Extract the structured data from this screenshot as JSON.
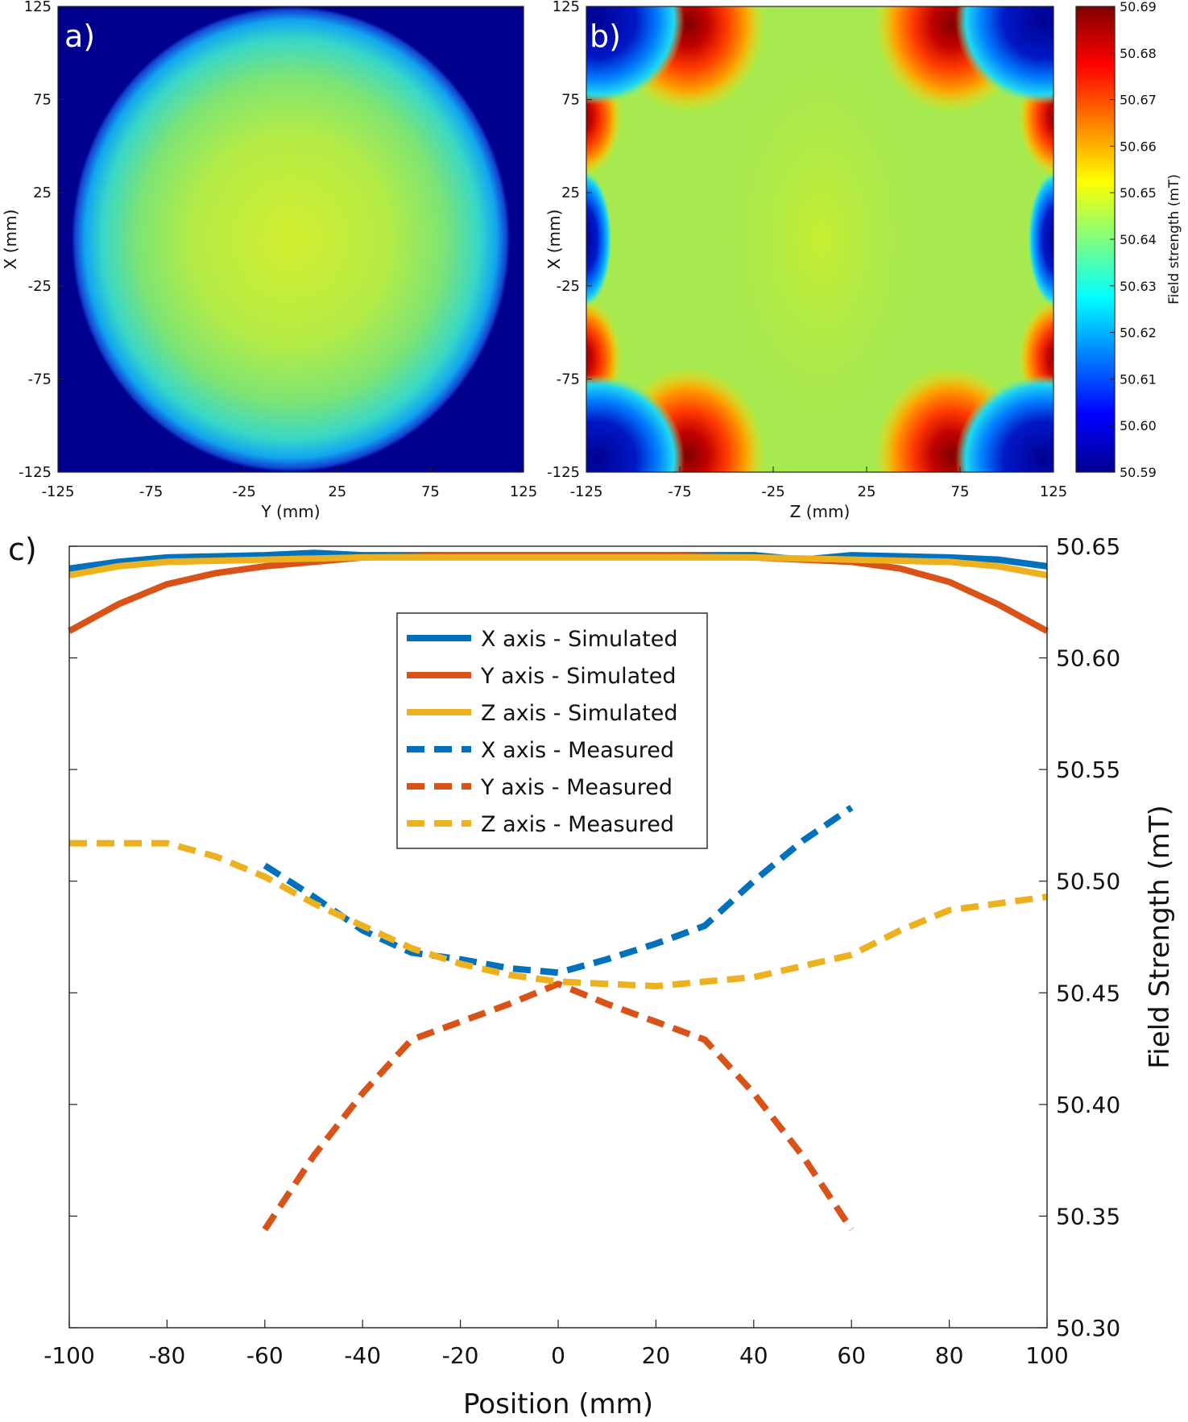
{
  "chart_data": [
    {
      "type": "heatmap",
      "panel_label": "a)",
      "xlabel": "Y (mm)",
      "ylabel": "X (mm)",
      "x_ticks": [
        "-125",
        "-75",
        "-25",
        "25",
        "75",
        "125"
      ],
      "y_ticks": [
        "125",
        "75",
        "25",
        "-25",
        "-75",
        "-125"
      ],
      "xlim": [
        -125,
        125
      ],
      "ylim": [
        -125,
        125
      ],
      "field_description_values": {
        "center": 50.647,
        "outside_ellipse": 50.59
      }
    },
    {
      "type": "heatmap",
      "panel_label": "b)",
      "xlabel": "Z (mm)",
      "ylabel": "X (mm)",
      "x_ticks": [
        "-125",
        "-75",
        "-25",
        "25",
        "75",
        "125"
      ],
      "y_ticks": [
        "125",
        "75",
        "25",
        "-25",
        "-75",
        "-125"
      ],
      "xlim": [
        -125,
        125
      ],
      "ylim": [
        -125,
        125
      ],
      "colorbar": {
        "label": "Field strength (mT)",
        "range": [
          50.59,
          50.69
        ],
        "ticks": [
          "50.69",
          "50.68",
          "50.67",
          "50.66",
          "50.65",
          "50.64",
          "50.63",
          "50.62",
          "50.61",
          "50.60",
          "50.59"
        ]
      }
    },
    {
      "type": "line",
      "panel_label": "c)",
      "xlabel": "Position (mm)",
      "ylabel": "Field Strength (mT)",
      "xlim": [
        -100,
        100
      ],
      "ylim": [
        50.3,
        50.65
      ],
      "x_ticks": [
        "-100",
        "-80",
        "-60",
        "-40",
        "-20",
        "0",
        "20",
        "40",
        "60",
        "80",
        "100"
      ],
      "y_ticks": [
        "50.65",
        "50.60",
        "50.55",
        "50.50",
        "50.45",
        "50.40",
        "50.35",
        "50.30"
      ],
      "series": [
        {
          "name": "X axis - Simulated",
          "color": "#0072BD",
          "dash": false,
          "x": [
            -100,
            -90,
            -80,
            -60,
            -50,
            -40,
            -20,
            0,
            20,
            40,
            50,
            60,
            80,
            90,
            100
          ],
          "y": [
            50.64,
            50.643,
            50.645,
            50.646,
            50.647,
            50.646,
            50.646,
            50.646,
            50.646,
            50.646,
            50.644,
            50.646,
            50.645,
            50.644,
            50.641
          ]
        },
        {
          "name": "Y axis - Simulated",
          "color": "#D95319",
          "dash": false,
          "x": [
            -100,
            -90,
            -80,
            -70,
            -60,
            -50,
            -40,
            -20,
            0,
            20,
            40,
            50,
            60,
            70,
            80,
            90,
            100
          ],
          "y": [
            50.612,
            50.624,
            50.633,
            50.638,
            50.641,
            50.643,
            50.645,
            50.646,
            50.646,
            50.646,
            50.645,
            50.644,
            50.643,
            50.64,
            50.634,
            50.624,
            50.612
          ]
        },
        {
          "name": "Z axis - Simulated",
          "color": "#EDB120",
          "dash": false,
          "x": [
            -100,
            -90,
            -80,
            -60,
            -40,
            -20,
            0,
            20,
            40,
            60,
            80,
            90,
            100
          ],
          "y": [
            50.637,
            50.641,
            50.643,
            50.644,
            50.645,
            50.645,
            50.645,
            50.645,
            50.645,
            50.644,
            50.643,
            50.641,
            50.637
          ]
        },
        {
          "name": "X axis - Measured",
          "color": "#0072BD",
          "dash": true,
          "x": [
            -60,
            -50,
            -40,
            -30,
            -20,
            -10,
            0,
            10,
            20,
            30,
            40,
            50,
            60
          ],
          "y": [
            50.507,
            50.493,
            50.478,
            50.468,
            50.465,
            50.461,
            50.459,
            50.465,
            50.472,
            50.48,
            50.5,
            50.518,
            50.533
          ]
        },
        {
          "name": "Y axis - Measured",
          "color": "#D95319",
          "dash": true,
          "x": [
            -60,
            -50,
            -40,
            -30,
            -20,
            -10,
            0,
            10,
            20,
            30,
            40,
            50,
            60
          ],
          "y": [
            50.344,
            50.377,
            50.405,
            50.429,
            50.437,
            50.445,
            50.454,
            50.445,
            50.437,
            50.429,
            50.405,
            50.377,
            50.344
          ]
        },
        {
          "name": "Z axis - Measured",
          "color": "#EDB120",
          "dash": true,
          "x": [
            -100,
            -90,
            -80,
            -70,
            -60,
            -50,
            -40,
            -30,
            -20,
            -10,
            0,
            10,
            20,
            30,
            40,
            50,
            60,
            70,
            80,
            90,
            100
          ],
          "y": [
            50.517,
            50.517,
            50.517,
            50.511,
            50.502,
            50.49,
            50.48,
            50.47,
            50.463,
            50.458,
            50.455,
            50.454,
            50.453,
            50.455,
            50.457,
            50.462,
            50.467,
            50.478,
            50.487,
            50.49,
            50.493
          ]
        }
      ]
    }
  ]
}
